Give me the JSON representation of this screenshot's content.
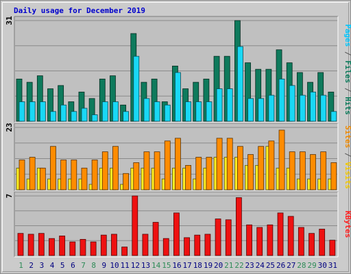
{
  "chart_data": {
    "type": "bar",
    "title": "Daily usage for December 2019",
    "categories": [
      "1",
      "2",
      "3",
      "4",
      "5",
      "6",
      "7",
      "8",
      "9",
      "10",
      "11",
      "12",
      "13",
      "14",
      "15",
      "16",
      "17",
      "18",
      "19",
      "20",
      "21",
      "22",
      "23",
      "24",
      "25",
      "26",
      "27",
      "28",
      "29",
      "30",
      "31"
    ],
    "weekend_days": [
      "1",
      "7",
      "8",
      "14",
      "15",
      "21",
      "22",
      "28",
      "29"
    ],
    "panels": [
      {
        "axis_max_label": "31",
        "ylim": [
          0,
          31
        ],
        "side_label": [
          {
            "text": "Pages",
            "color": "#00c8ff"
          },
          {
            "text": " / ",
            "color": "#555555"
          },
          {
            "text": "Files",
            "color": "#0a7a5a"
          },
          {
            "text": " / ",
            "color": "#555555"
          },
          {
            "text": "Hits",
            "color": "#0a7a5a"
          }
        ],
        "series": [
          {
            "name": "Hits",
            "color": "#0e7a5c",
            "values": [
              13,
              12,
              14,
              10,
              11,
              6,
              9,
              7,
              13,
              14,
              5,
              27,
              12,
              13,
              6,
              17,
              10,
              12,
              13,
              20,
              20,
              31,
              18,
              16,
              16,
              22,
              18,
              15,
              12,
              15,
              9
            ]
          },
          {
            "name": "Pages",
            "color": "#19d8f5",
            "values": [
              6,
              6,
              6,
              3,
              5,
              3,
              4,
              2,
              6,
              6,
              3,
              20,
              7,
              6,
              5,
              15,
              6,
              6,
              6,
              10,
              10,
              23,
              7,
              7,
              8,
              13,
              11,
              8,
              9,
              8,
              3
            ]
          }
        ]
      },
      {
        "axis_max_label": "23",
        "ylim": [
          0,
          23
        ],
        "side_label": [
          {
            "text": "Sites",
            "color": "#f08a00"
          },
          {
            "text": " / ",
            "color": "#555555"
          },
          {
            "text": "Visits",
            "color": "#f2c800"
          }
        ],
        "series": [
          {
            "name": "Visits",
            "color": "#ffee22",
            "values": [
              8,
              4,
              8,
              4,
              4,
              4,
              4,
              2,
              8,
              8,
              2,
              8,
              8,
              8,
              4,
              8,
              8,
              4,
              8,
              12,
              12,
              12,
              9,
              9,
              16,
              8,
              8,
              4,
              4,
              4,
              4
            ]
          },
          {
            "name": "Sites",
            "color": "#ff8c00",
            "values": [
              11,
              12,
              8,
              16,
              11,
              11,
              8,
              11,
              14,
              16,
              6,
              10,
              14,
              14,
              18,
              19,
              9,
              12,
              12,
              19,
              19,
              16,
              13,
              16,
              18,
              22,
              14,
              14,
              13,
              14,
              10
            ]
          }
        ]
      },
      {
        "axis_max_label": "7",
        "ylim": [
          0,
          7
        ],
        "side_label": [
          {
            "text": "KBytes",
            "color": "#ff2020"
          }
        ],
        "series": [
          {
            "name": "KBytes",
            "color": "#ee1111",
            "values": [
              2.6,
              2.5,
              2.6,
              2.0,
              2.3,
              1.6,
              1.9,
              1.6,
              2.4,
              2.5,
              1.0,
              7.0,
              2.5,
              3.9,
              2.0,
              5.0,
              2.1,
              2.4,
              2.5,
              4.3,
              4.2,
              6.8,
              3.6,
              3.3,
              3.6,
              5.0,
              4.6,
              3.3,
              2.6,
              3.1,
              1.8
            ]
          }
        ]
      }
    ]
  }
}
